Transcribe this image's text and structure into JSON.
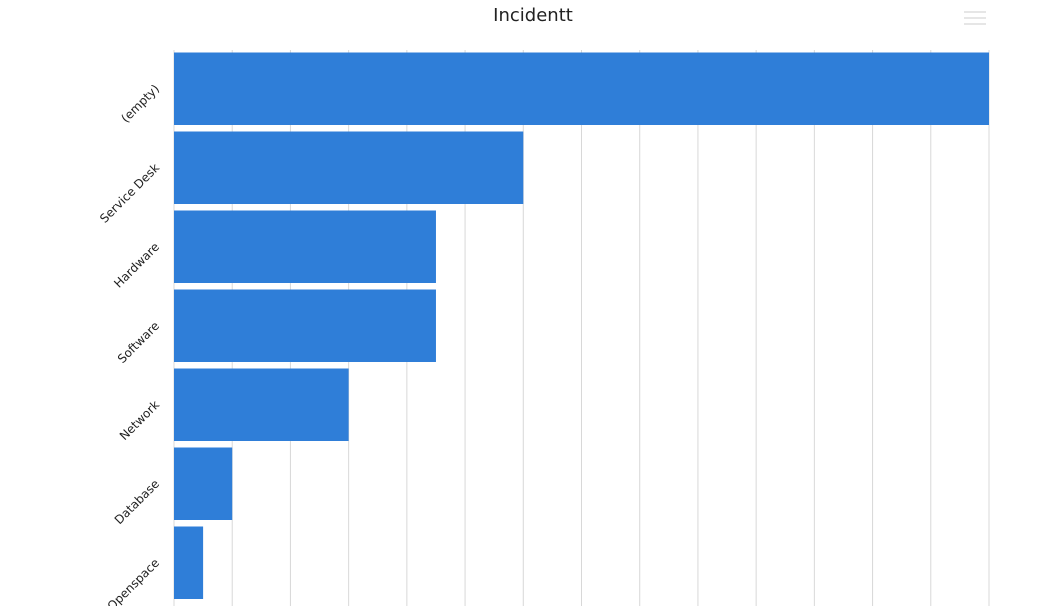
{
  "chart_data": {
    "type": "bar",
    "orientation": "horizontal",
    "title": "Incidentt",
    "categories": [
      "(empty)",
      "Service Desk",
      "Hardware",
      "Software",
      "Network",
      "Database",
      "Openspace"
    ],
    "values": [
      28,
      12,
      9,
      9,
      6,
      2,
      1
    ],
    "color": "#2f7ed8",
    "xlim": [
      0,
      28
    ],
    "xticks": [
      0,
      2,
      4,
      6,
      8,
      10,
      12,
      14,
      16,
      18,
      20,
      22,
      24,
      26,
      28
    ],
    "grid": true
  }
}
